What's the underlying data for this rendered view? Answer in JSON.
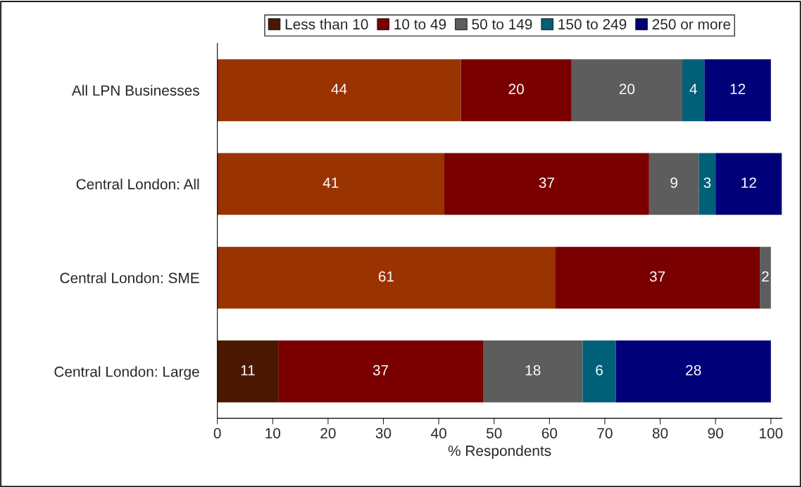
{
  "chart_data": {
    "type": "bar",
    "orientation": "horizontal",
    "stacked": true,
    "xlabel": "% Respondents",
    "categories": [
      "All LPN Businesses",
      "Central London: All",
      "Central London: SME",
      "Central London: Large"
    ],
    "series": [
      {
        "name": "Less than 10",
        "color": "#4a1800",
        "colors": [
          "#993300",
          "#993300",
          "#993300",
          "#4a1800"
        ],
        "values": [
          44,
          41,
          61,
          11
        ]
      },
      {
        "name": "10 to 49",
        "color": "#7a0000",
        "values": [
          20,
          37,
          37,
          37
        ]
      },
      {
        "name": "50 to 149",
        "color": "#5d5d5d",
        "values": [
          20,
          9,
          2,
          18
        ]
      },
      {
        "name": "150 to 249",
        "color": "#006078",
        "values": [
          4,
          3,
          null,
          6
        ]
      },
      {
        "name": "250 or more",
        "color": "#000078",
        "values": [
          12,
          12,
          null,
          28
        ]
      }
    ],
    "xlim": [
      0,
      102
    ],
    "xticks": [
      0,
      10,
      20,
      30,
      40,
      50,
      60,
      70,
      80,
      90,
      100
    ],
    "data_labels": true,
    "legend": "top",
    "grid": false
  }
}
